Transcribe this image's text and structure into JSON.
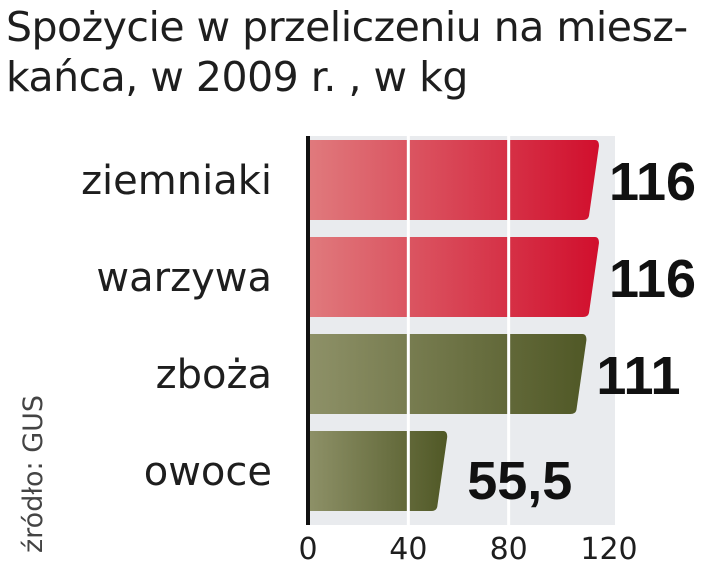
{
  "title_lines": [
    "Spożycie w przeliczeniu na miesz-",
    "kańca, w 2009 r. , w kg"
  ],
  "source": "źródło: GUS",
  "colors": {
    "red_light": "#e07a7d",
    "red_dark": "#d10f2d",
    "olive_light": "#8e9168",
    "olive_dark": "#505826",
    "axis": "#111111",
    "panel": "#e9ebee",
    "grid": "#ffffff"
  },
  "chart_data": {
    "type": "bar",
    "orientation": "horizontal",
    "title": "Spożycie w przeliczeniu na mieszkańca, w 2009 r. , w kg",
    "categories": [
      "ziemniaki",
      "warzywa",
      "zboża",
      "owoce"
    ],
    "values": [
      116,
      116,
      111,
      55.5
    ],
    "value_labels": [
      "116",
      "116",
      "111",
      "55,5"
    ],
    "bar_colors": [
      "red",
      "red",
      "olive",
      "olive"
    ],
    "xlim": [
      0,
      120
    ],
    "xticks": [
      0,
      40,
      80,
      120
    ],
    "xtick_labels": [
      "0",
      "40",
      "80",
      "120"
    ],
    "grid": true
  }
}
